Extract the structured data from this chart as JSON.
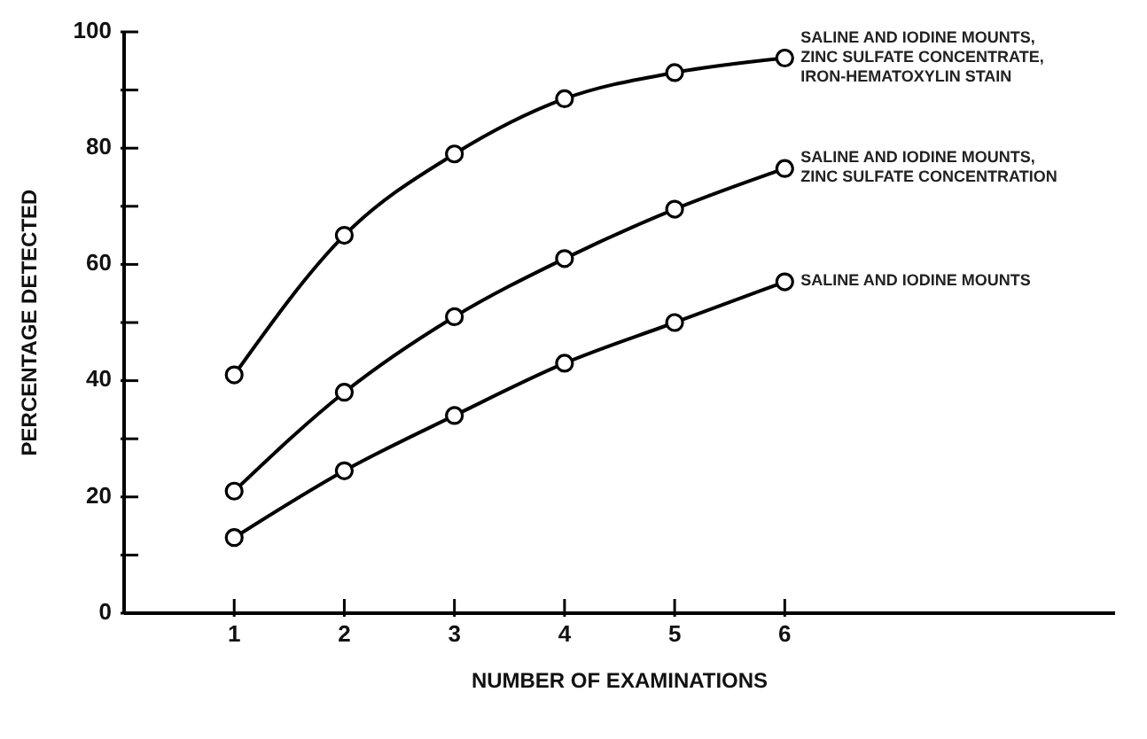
{
  "chart_data": {
    "type": "line",
    "xlabel": "NUMBER OF EXAMINATIONS",
    "ylabel": "PERCENTAGE DETECTED",
    "x": [
      1,
      2,
      3,
      4,
      5,
      6
    ],
    "series": [
      {
        "name": "SALINE AND IODINE MOUNTS, ZINC SULFATE CONCENTRATE, IRON-HEMATOXYLIN STAIN",
        "color": "#000000",
        "values": [
          41,
          65,
          79,
          88.5,
          93,
          95.5
        ]
      },
      {
        "name": "SALINE AND IODINE MOUNTS, ZINC SULFATE CONCENTRATION",
        "color": "#000000",
        "values": [
          21,
          38,
          51,
          61,
          69.5,
          76.5
        ]
      },
      {
        "name": "SALINE AND IODINE MOUNTS",
        "color": "#000000",
        "values": [
          13,
          24.5,
          34,
          43,
          50,
          57
        ]
      }
    ],
    "xlim": [
      0,
      9
    ],
    "xticks": [
      1,
      2,
      3,
      4,
      5,
      6
    ],
    "ylim": [
      0,
      100
    ],
    "yticks": [
      0,
      {
        "value": 10,
        "label": null
      },
      20,
      {
        "value": 30,
        "label": null
      },
      40,
      {
        "value": 50,
        "label": null
      },
      60,
      {
        "value": 70,
        "label": null
      },
      80,
      {
        "value": 90,
        "label": null
      },
      100
    ],
    "marker": "circle",
    "line_style": "solid",
    "grid": false,
    "legend": false
  }
}
